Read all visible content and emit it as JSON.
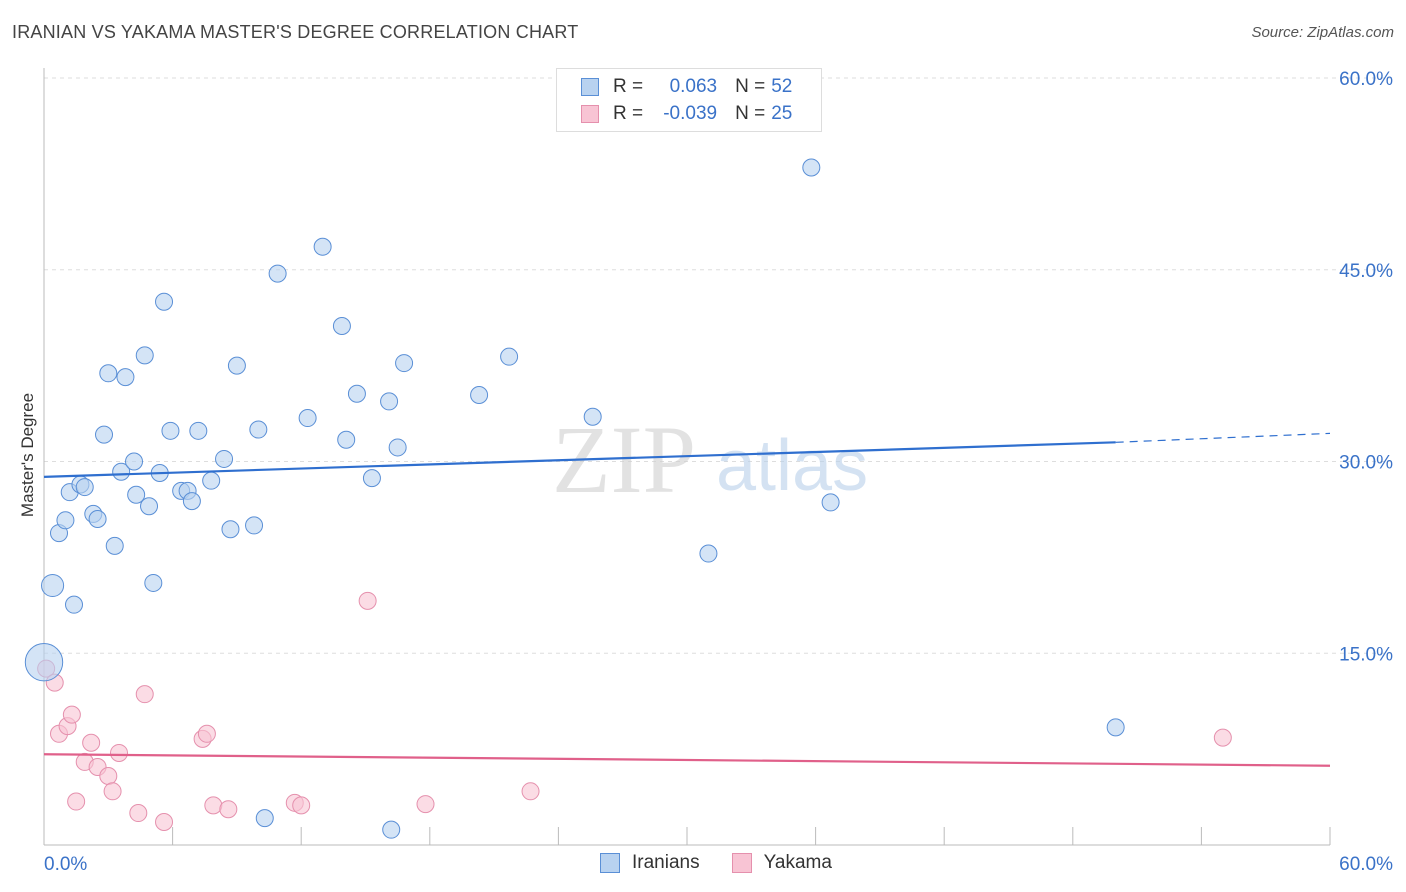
{
  "header": {
    "title": "IRANIAN VS YAKAMA MASTER'S DEGREE CORRELATION CHART",
    "source": "Source: ZipAtlas.com"
  },
  "legend": {
    "rows": [
      {
        "r_label": "R =",
        "r_value": "0.063",
        "n_label": "N =",
        "n_value": "52"
      },
      {
        "r_label": "R =",
        "r_value": "-0.039",
        "n_label": "N =",
        "n_value": "25"
      }
    ]
  },
  "bottom_legend": {
    "iranians": "Iranians",
    "yakama": "Yakama"
  },
  "y_axis_title": "Master's Degree",
  "colors": {
    "iranians_fill": "#b8d2f0",
    "iranians_stroke": "#5a8fd6",
    "iranians_line": "#2f6fcf",
    "yakama_fill": "#f8c4d4",
    "yakama_stroke": "#e590ad",
    "yakama_line": "#e0608a",
    "tick_text": "#3a72c8",
    "grid": "#dddddd"
  },
  "chart_data": {
    "type": "scatter",
    "title": "IRANIAN VS YAKAMA MASTER'S DEGREE CORRELATION CHART",
    "xlabel": "",
    "ylabel": "Master's Degree",
    "xlim": [
      0,
      60
    ],
    "ylim": [
      0,
      60
    ],
    "x_tick_labels": [
      {
        "value": 0,
        "label": "0.0%"
      },
      {
        "value": 60,
        "label": "60.0%"
      }
    ],
    "y_tick_labels": [
      {
        "value": 15,
        "label": "15.0%"
      },
      {
        "value": 30,
        "label": "30.0%"
      },
      {
        "value": 45,
        "label": "45.0%"
      },
      {
        "value": 60,
        "label": "60.0%"
      }
    ],
    "gridlines": [
      15,
      30,
      45,
      60
    ],
    "watermark": "ZIPatlas",
    "series": [
      {
        "name": "Iranians",
        "R": 0.063,
        "N": 52,
        "trend": {
          "x": [
            0,
            50,
            60
          ],
          "y": [
            28.8,
            31.5,
            32.2
          ],
          "solid_until": 50
        },
        "points": [
          [
            0,
            14.3,
            2.2
          ],
          [
            0.4,
            20.3,
            1.3
          ],
          [
            0.7,
            24.4,
            1
          ],
          [
            1.0,
            25.4,
            1
          ],
          [
            1.2,
            27.6,
            1
          ],
          [
            1.4,
            18.8,
            1
          ],
          [
            1.7,
            28.2,
            1
          ],
          [
            1.9,
            28.0,
            1
          ],
          [
            2.3,
            25.9,
            1
          ],
          [
            2.5,
            25.5,
            1
          ],
          [
            2.8,
            32.1,
            1
          ],
          [
            3.0,
            36.9,
            1
          ],
          [
            3.3,
            23.4,
            1
          ],
          [
            3.6,
            29.2,
            1
          ],
          [
            3.8,
            36.6,
            1
          ],
          [
            4.2,
            30.0,
            1
          ],
          [
            4.3,
            27.4,
            1
          ],
          [
            4.7,
            38.3,
            1
          ],
          [
            4.9,
            26.5,
            1
          ],
          [
            5.1,
            20.5,
            1
          ],
          [
            5.4,
            29.1,
            1
          ],
          [
            5.6,
            42.5,
            1
          ],
          [
            5.9,
            32.4,
            1
          ],
          [
            6.4,
            27.7,
            1
          ],
          [
            6.7,
            27.7,
            1
          ],
          [
            6.9,
            26.9,
            1
          ],
          [
            7.2,
            32.4,
            1
          ],
          [
            7.8,
            28.5,
            1
          ],
          [
            8.4,
            30.2,
            1
          ],
          [
            8.7,
            24.7,
            1
          ],
          [
            9.0,
            37.5,
            1
          ],
          [
            9.8,
            25.0,
            1
          ],
          [
            10.0,
            32.5,
            1
          ],
          [
            10.3,
            2.1,
            1
          ],
          [
            10.9,
            44.7,
            1
          ],
          [
            12.3,
            33.4,
            1
          ],
          [
            13.0,
            46.8,
            1
          ],
          [
            13.9,
            40.6,
            1
          ],
          [
            14.1,
            31.7,
            1
          ],
          [
            14.6,
            35.3,
            1
          ],
          [
            15.3,
            28.7,
            1
          ],
          [
            16.2,
            1.2,
            1
          ],
          [
            16.1,
            34.7,
            1
          ],
          [
            16.5,
            31.1,
            1
          ],
          [
            16.8,
            37.7,
            1
          ],
          [
            20.3,
            35.2,
            1
          ],
          [
            21.7,
            38.2,
            1
          ],
          [
            25.6,
            33.5,
            1
          ],
          [
            31.0,
            22.8,
            1
          ],
          [
            35.8,
            53.0,
            1
          ],
          [
            36.7,
            26.8,
            1
          ],
          [
            50.0,
            9.2,
            1
          ]
        ]
      },
      {
        "name": "Yakama",
        "R": -0.039,
        "N": 25,
        "trend": {
          "x": [
            0,
            60
          ],
          "y": [
            7.1,
            6.2
          ]
        },
        "points": [
          [
            0.1,
            13.8,
            1
          ],
          [
            0.5,
            12.7,
            1
          ],
          [
            0.7,
            8.7,
            1
          ],
          [
            1.1,
            9.3,
            1
          ],
          [
            1.3,
            10.2,
            1
          ],
          [
            1.5,
            3.4,
            1
          ],
          [
            1.9,
            6.5,
            1
          ],
          [
            2.2,
            8.0,
            1
          ],
          [
            2.5,
            6.1,
            1
          ],
          [
            3.0,
            5.4,
            1
          ],
          [
            3.2,
            4.2,
            1
          ],
          [
            3.5,
            7.2,
            1
          ],
          [
            4.4,
            2.5,
            1
          ],
          [
            4.7,
            11.8,
            1
          ],
          [
            5.6,
            1.8,
            1
          ],
          [
            7.4,
            8.3,
            1
          ],
          [
            7.6,
            8.7,
            1
          ],
          [
            7.9,
            3.1,
            1
          ],
          [
            8.6,
            2.8,
            1
          ],
          [
            11.7,
            3.3,
            1
          ],
          [
            12.0,
            3.1,
            1
          ],
          [
            15.1,
            19.1,
            1
          ],
          [
            17.8,
            3.2,
            1
          ],
          [
            22.7,
            4.2,
            1
          ],
          [
            55.0,
            8.4,
            1
          ]
        ]
      }
    ]
  }
}
